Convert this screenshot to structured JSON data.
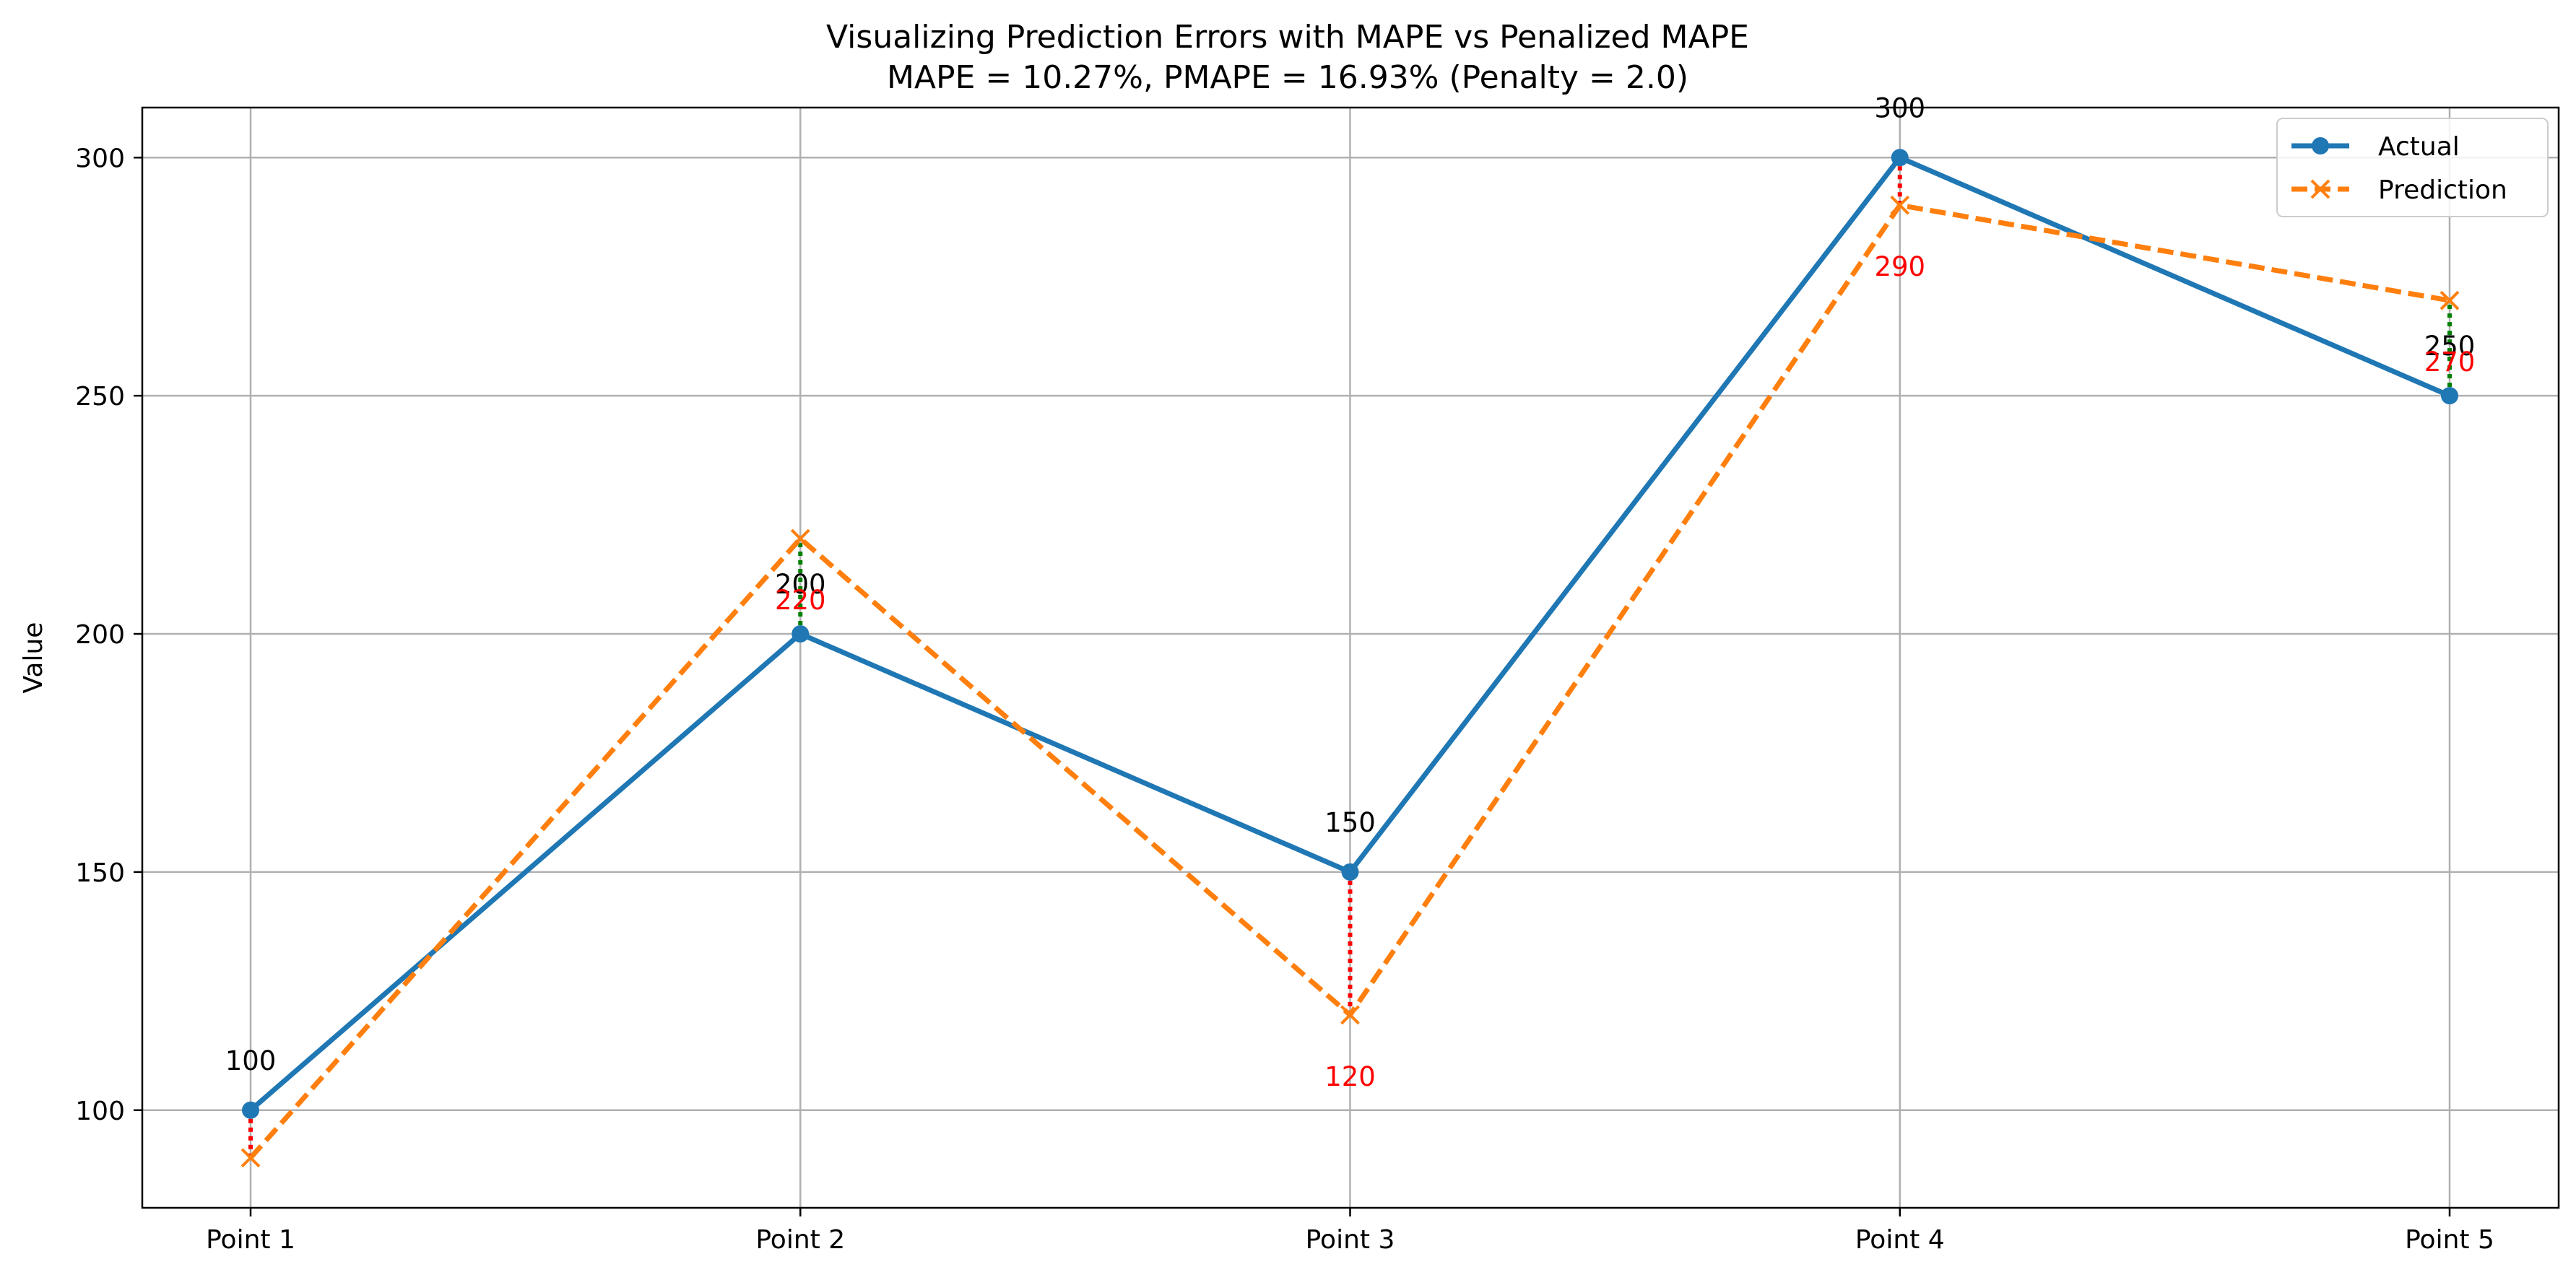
{
  "chart_data": {
    "type": "line",
    "title": "Visualizing Prediction Errors with MAPE vs Penalized MAPE",
    "subtitle": "MAPE = 10.27%, PMAPE = 16.93% (Penalty = 2.0)",
    "xlabel": "",
    "ylabel": "Value",
    "categories": [
      "Point 1",
      "Point 2",
      "Point 3",
      "Point 4",
      "Point 5"
    ],
    "yticks": [
      100,
      150,
      200,
      250,
      300
    ],
    "ylim": [
      79.5,
      310.5
    ],
    "grid": true,
    "legend_position": "top-right",
    "series": [
      {
        "name": "Actual",
        "values": [
          100,
          200,
          150,
          300,
          250
        ],
        "color": "#1f77b4",
        "marker": "circle",
        "linestyle": "solid"
      },
      {
        "name": "Prediction",
        "values": [
          90,
          220,
          120,
          290,
          270
        ],
        "color": "#ff7f0e",
        "marker": "x",
        "linestyle": "dashed"
      }
    ],
    "actual_labels": [
      "100",
      "200",
      "150",
      "300",
      "250"
    ],
    "prediction_labels": [
      "",
      "220",
      "120",
      "290",
      "270"
    ],
    "error_lines": [
      {
        "category": "Point 1",
        "from": 100,
        "to": 90,
        "color": "#ff0000"
      },
      {
        "category": "Point 2",
        "from": 200,
        "to": 220,
        "color": "#008000"
      },
      {
        "category": "Point 3",
        "from": 150,
        "to": 120,
        "color": "#ff0000"
      },
      {
        "category": "Point 4",
        "from": 300,
        "to": 290,
        "color": "#ff0000"
      },
      {
        "category": "Point 5",
        "from": 250,
        "to": 270,
        "color": "#008000"
      }
    ],
    "grid_color": "#b0b0b0"
  }
}
